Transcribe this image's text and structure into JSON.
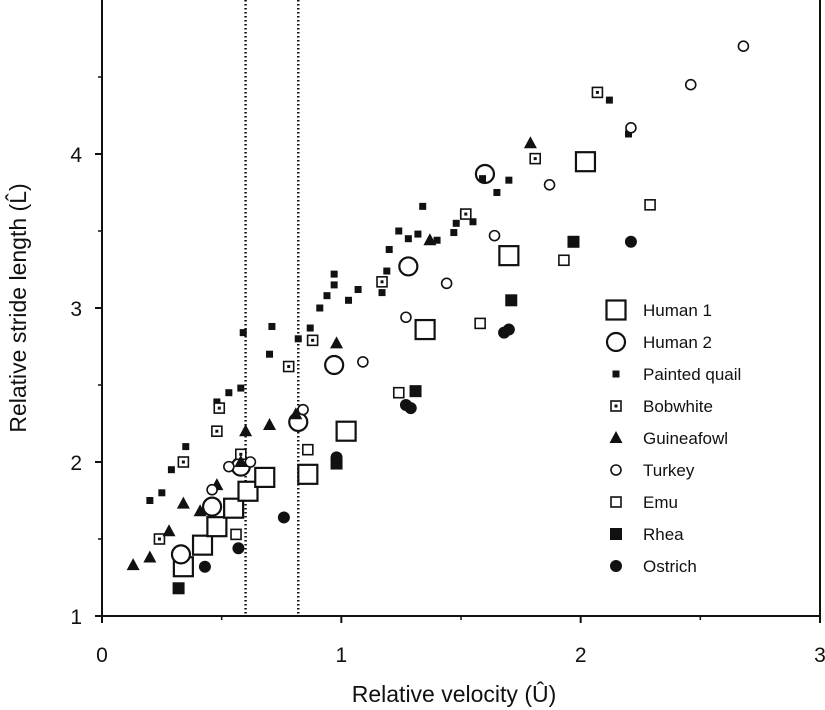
{
  "chart_data": {
    "type": "scatter",
    "title": "",
    "xlabel": "Relative velocity (Û)",
    "ylabel": "Relative stride length (L̂)",
    "xlim": [
      0,
      3
    ],
    "ylim": [
      1,
      5
    ],
    "xticks": [
      0,
      1,
      2,
      3
    ],
    "yticks": [
      1,
      2,
      3,
      4
    ],
    "grid": false,
    "legend_position": "right",
    "reference_lines_x": [
      0.6,
      0.82
    ],
    "series": [
      {
        "name": "Human 1",
        "marker": "square-open-large",
        "points": [
          [
            0.34,
            1.32
          ],
          [
            0.42,
            1.46
          ],
          [
            0.48,
            1.58
          ],
          [
            0.55,
            1.7
          ],
          [
            0.61,
            1.81
          ],
          [
            0.68,
            1.9
          ],
          [
            0.86,
            1.92
          ],
          [
            1.02,
            2.2
          ],
          [
            1.35,
            2.86
          ],
          [
            1.7,
            3.34
          ],
          [
            2.02,
            3.95
          ]
        ]
      },
      {
        "name": "Human 2",
        "marker": "circle-open-large",
        "points": [
          [
            0.33,
            1.4
          ],
          [
            0.46,
            1.71
          ],
          [
            0.58,
            1.97
          ],
          [
            0.82,
            2.26
          ],
          [
            0.97,
            2.63
          ],
          [
            1.28,
            3.27
          ],
          [
            1.6,
            3.87
          ]
        ]
      },
      {
        "name": "Painted quail",
        "marker": "square-filled-small",
        "points": [
          [
            0.2,
            1.75
          ],
          [
            0.25,
            1.8
          ],
          [
            0.29,
            1.95
          ],
          [
            0.35,
            2.1
          ],
          [
            0.48,
            2.39
          ],
          [
            0.53,
            2.45
          ],
          [
            0.58,
            2.48
          ],
          [
            0.59,
            2.84
          ],
          [
            0.7,
            2.7
          ],
          [
            0.71,
            2.88
          ],
          [
            0.82,
            2.8
          ],
          [
            0.87,
            2.87
          ],
          [
            0.91,
            3.0
          ],
          [
            0.94,
            3.08
          ],
          [
            0.97,
            3.15
          ],
          [
            0.97,
            3.22
          ],
          [
            1.03,
            3.05
          ],
          [
            1.07,
            3.12
          ],
          [
            1.17,
            3.1
          ],
          [
            1.19,
            3.24
          ],
          [
            1.2,
            3.38
          ],
          [
            1.24,
            3.5
          ],
          [
            1.28,
            3.45
          ],
          [
            1.32,
            3.48
          ],
          [
            1.34,
            3.66
          ],
          [
            1.4,
            3.44
          ],
          [
            1.47,
            3.49
          ],
          [
            1.48,
            3.55
          ],
          [
            1.51,
            3.61
          ],
          [
            1.55,
            3.56
          ],
          [
            1.59,
            3.84
          ],
          [
            1.65,
            3.75
          ],
          [
            1.7,
            3.83
          ],
          [
            2.12,
            4.35
          ],
          [
            2.2,
            4.13
          ]
        ]
      },
      {
        "name": "Bobwhite",
        "marker": "square-dotted",
        "points": [
          [
            0.24,
            1.5
          ],
          [
            0.34,
            2.0
          ],
          [
            0.48,
            2.2
          ],
          [
            0.49,
            2.35
          ],
          [
            0.58,
            2.05
          ],
          [
            0.78,
            2.62
          ],
          [
            0.88,
            2.79
          ],
          [
            1.17,
            3.17
          ],
          [
            1.52,
            3.61
          ],
          [
            1.81,
            3.97
          ],
          [
            2.07,
            4.4
          ]
        ]
      },
      {
        "name": "Guineafowl",
        "marker": "triangle-filled",
        "points": [
          [
            0.13,
            1.33
          ],
          [
            0.2,
            1.38
          ],
          [
            0.28,
            1.55
          ],
          [
            0.34,
            1.73
          ],
          [
            0.41,
            1.68
          ],
          [
            0.48,
            1.85
          ],
          [
            0.58,
            2.0
          ],
          [
            0.6,
            2.2
          ],
          [
            0.7,
            2.24
          ],
          [
            0.81,
            2.31
          ],
          [
            0.98,
            2.77
          ],
          [
            1.37,
            3.44
          ],
          [
            1.79,
            4.07
          ]
        ]
      },
      {
        "name": "Turkey",
        "marker": "circle-open-small",
        "points": [
          [
            0.46,
            1.82
          ],
          [
            0.53,
            1.97
          ],
          [
            0.62,
            2.0
          ],
          [
            0.84,
            2.34
          ],
          [
            1.09,
            2.65
          ],
          [
            1.27,
            2.94
          ],
          [
            1.44,
            3.16
          ],
          [
            1.64,
            3.47
          ],
          [
            1.87,
            3.8
          ],
          [
            2.21,
            4.17
          ],
          [
            2.46,
            4.45
          ],
          [
            2.68,
            4.7
          ]
        ]
      },
      {
        "name": "Emu",
        "marker": "square-open-small",
        "points": [
          [
            0.56,
            1.53
          ],
          [
            0.86,
            2.08
          ],
          [
            1.24,
            2.45
          ],
          [
            1.58,
            2.9
          ],
          [
            1.93,
            3.31
          ],
          [
            2.29,
            3.67
          ]
        ]
      },
      {
        "name": "Rhea",
        "marker": "square-filled",
        "points": [
          [
            0.32,
            1.18
          ],
          [
            0.98,
            1.99
          ],
          [
            1.31,
            2.46
          ],
          [
            1.71,
            3.05
          ],
          [
            1.97,
            3.43
          ]
        ]
      },
      {
        "name": "Ostrich",
        "marker": "circle-filled",
        "points": [
          [
            0.43,
            1.32
          ],
          [
            0.57,
            1.44
          ],
          [
            0.76,
            1.64
          ],
          [
            0.98,
            2.03
          ],
          [
            1.27,
            2.37
          ],
          [
            1.29,
            2.35
          ],
          [
            1.68,
            2.84
          ],
          [
            1.7,
            2.86
          ],
          [
            2.21,
            3.43
          ]
        ]
      }
    ]
  }
}
